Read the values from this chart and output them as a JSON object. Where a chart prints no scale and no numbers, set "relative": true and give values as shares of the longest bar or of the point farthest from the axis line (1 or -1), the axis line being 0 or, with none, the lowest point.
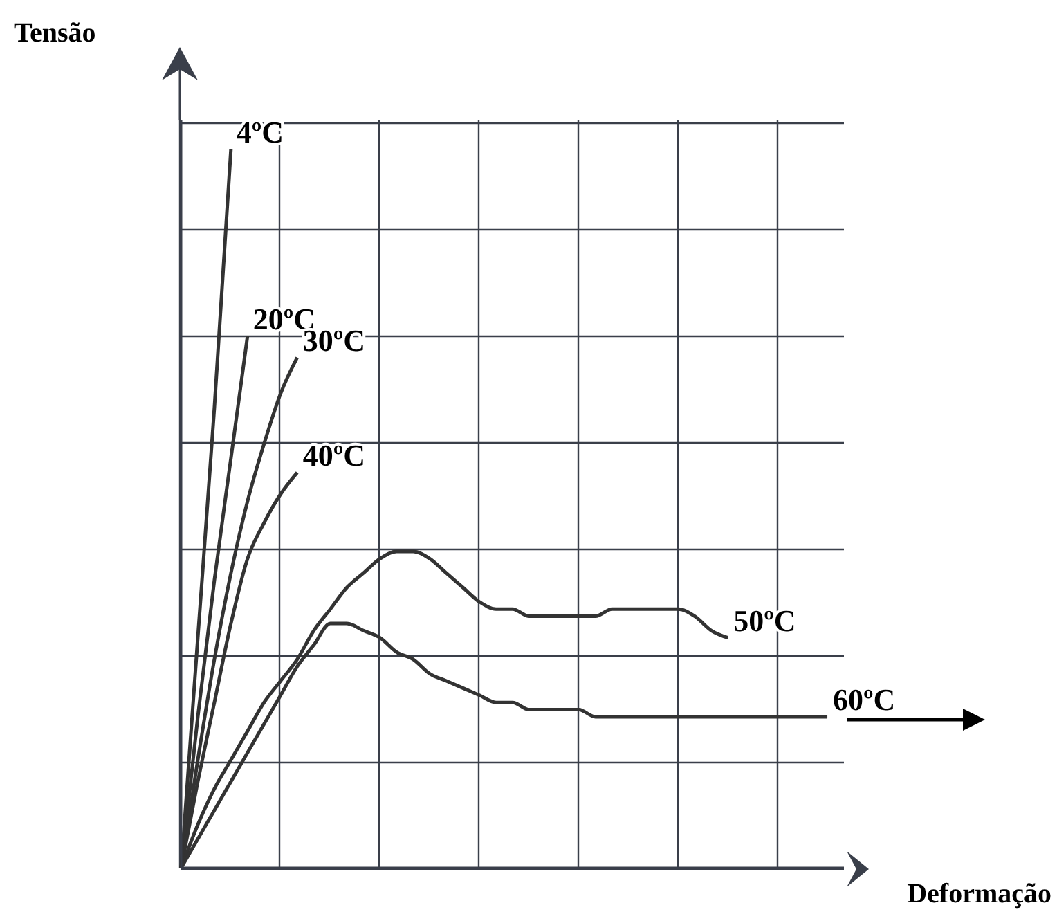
{
  "chart_data": {
    "type": "line",
    "relative": true,
    "ylabel": "Tensão",
    "xlabel": "Deformação",
    "grid": true,
    "marker": "none",
    "line_style": "solid",
    "categories": [
      null,
      null,
      null,
      null,
      null,
      null,
      null,
      null,
      null,
      null,
      null,
      null,
      null,
      null,
      null,
      null,
      null,
      null,
      null,
      null,
      null,
      null,
      null,
      null,
      null,
      null,
      null,
      null,
      null,
      null,
      null,
      null,
      null,
      null,
      null,
      null,
      null,
      null,
      null,
      null,
      null
    ],
    "series": [
      {
        "name": "4ºC",
        "color": "#333333",
        "values": [
          0,
          0.32,
          0.64,
          1,
          null,
          null,
          null,
          null,
          null,
          null,
          null,
          null,
          null,
          null,
          null,
          null,
          null,
          null,
          null,
          null,
          null,
          null,
          null,
          null,
          null,
          null,
          null,
          null,
          null,
          null,
          null,
          null,
          null,
          null,
          null,
          null,
          null,
          null,
          null,
          null,
          null
        ]
      },
      {
        "name": "20ºC",
        "color": "#333333",
        "values": [
          0,
          0.21,
          0.4,
          0.57,
          0.74,
          null,
          null,
          null,
          null,
          null,
          null,
          null,
          null,
          null,
          null,
          null,
          null,
          null,
          null,
          null,
          null,
          null,
          null,
          null,
          null,
          null,
          null,
          null,
          null,
          null,
          null,
          null,
          null,
          null,
          null,
          null,
          null,
          null,
          null,
          null,
          null
        ]
      },
      {
        "name": "30ºC",
        "color": "#333333",
        "values": [
          0,
          0.15,
          0.29,
          0.41,
          0.51,
          0.59,
          0.66,
          0.71,
          null,
          null,
          null,
          null,
          null,
          null,
          null,
          null,
          null,
          null,
          null,
          null,
          null,
          null,
          null,
          null,
          null,
          null,
          null,
          null,
          null,
          null,
          null,
          null,
          null,
          null,
          null,
          null,
          null,
          null,
          null,
          null,
          null
        ]
      },
      {
        "name": "40ºC",
        "color": "#333333",
        "values": [
          0,
          0.12,
          0.23,
          0.34,
          0.43,
          0.48,
          0.52,
          0.55,
          null,
          null,
          null,
          null,
          null,
          null,
          null,
          null,
          null,
          null,
          null,
          null,
          null,
          null,
          null,
          null,
          null,
          null,
          null,
          null,
          null,
          null,
          null,
          null,
          null,
          null,
          null,
          null,
          null,
          null,
          null,
          null,
          null
        ]
      },
      {
        "name": "50ºC",
        "color": "#333333",
        "values": [
          0,
          0.06,
          0.11,
          0.15,
          0.19,
          0.23,
          0.26,
          0.29,
          0.33,
          0.36,
          0.39,
          0.41,
          0.43,
          0.44,
          0.44,
          0.43,
          0.41,
          0.39,
          0.37,
          0.36,
          0.36,
          0.35,
          0.35,
          0.35,
          0.35,
          0.35,
          0.36,
          0.36,
          0.36,
          0.36,
          0.36,
          0.35,
          0.33,
          0.32,
          null,
          null,
          null,
          null,
          null,
          null,
          null
        ]
      },
      {
        "name": "60ºC",
        "color": "#333333",
        "values": [
          0,
          0.04,
          0.08,
          0.12,
          0.16,
          0.2,
          0.24,
          0.28,
          0.31,
          0.34,
          0.34,
          0.33,
          0.32,
          0.3,
          0.29,
          0.27,
          0.26,
          0.25,
          0.24,
          0.23,
          0.23,
          0.22,
          0.22,
          0.22,
          0.22,
          0.21,
          0.21,
          0.21,
          0.21,
          0.21,
          0.21,
          0.21,
          0.21,
          0.21,
          0.21,
          0.21,
          0.21,
          0.21,
          0.21,
          0.21,
          null
        ]
      }
    ]
  }
}
